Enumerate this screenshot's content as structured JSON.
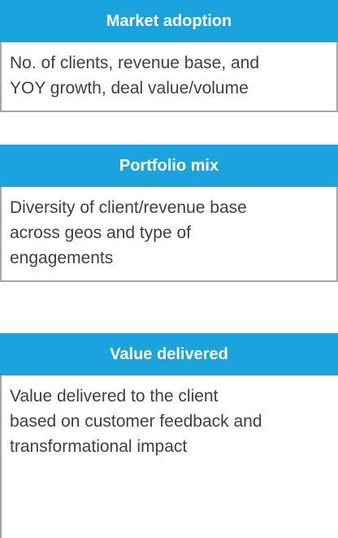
{
  "cards": [
    {
      "title": "Market adoption",
      "lines": [
        "No. of clients, revenue base, and",
        "YOY growth, deal value/volume"
      ]
    },
    {
      "title": "Portfolio mix",
      "lines": [
        "Diversity of client/revenue base",
        "across geos and type of",
        "engagements"
      ]
    },
    {
      "title": "Value delivered",
      "lines": [
        "Value delivered to the client",
        "based on customer feedback and",
        "transformational impact"
      ]
    }
  ]
}
